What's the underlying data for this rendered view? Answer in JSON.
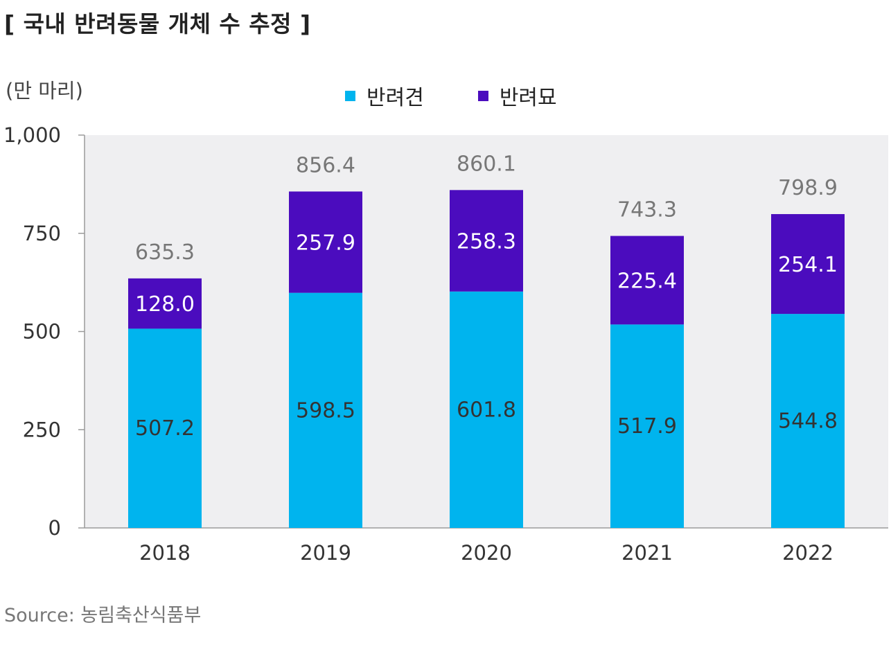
{
  "title": "[ 국내 반려동물 개체 수 추정 ]",
  "unit_label": "(만 마리)",
  "source": "Source: 농림축산식품부",
  "colors": {
    "dog": "#00B4EE",
    "cat": "#4B0CBE",
    "plot_bg": "#EFEFF1",
    "axis": "#9a9a9a"
  },
  "chart_data": {
    "type": "bar",
    "stacked": true,
    "categories": [
      "2018",
      "2019",
      "2020",
      "2021",
      "2022"
    ],
    "series": [
      {
        "name": "반려견",
        "values": [
          507.2,
          598.5,
          601.8,
          517.9,
          544.8
        ]
      },
      {
        "name": "반려묘",
        "values": [
          128.0,
          257.9,
          258.3,
          225.4,
          254.1
        ]
      }
    ],
    "value_labels": {
      "dog": [
        "507.2",
        "598.5",
        "601.8",
        "517.9",
        "544.8"
      ],
      "cat": [
        "128.0",
        "257.9",
        "258.3",
        "225.4",
        "254.1"
      ]
    },
    "totals": [
      635.3,
      856.4,
      860.1,
      743.3,
      798.9
    ],
    "total_labels": [
      "635.3",
      "856.4",
      "860.1",
      "743.3",
      "798.9"
    ],
    "ylim": [
      0,
      1000
    ],
    "yticks": [
      0,
      250,
      500,
      750,
      1000
    ],
    "ytick_labels": [
      "0",
      "250",
      "500",
      "750",
      "1,000"
    ],
    "legend_position": "top-center"
  }
}
